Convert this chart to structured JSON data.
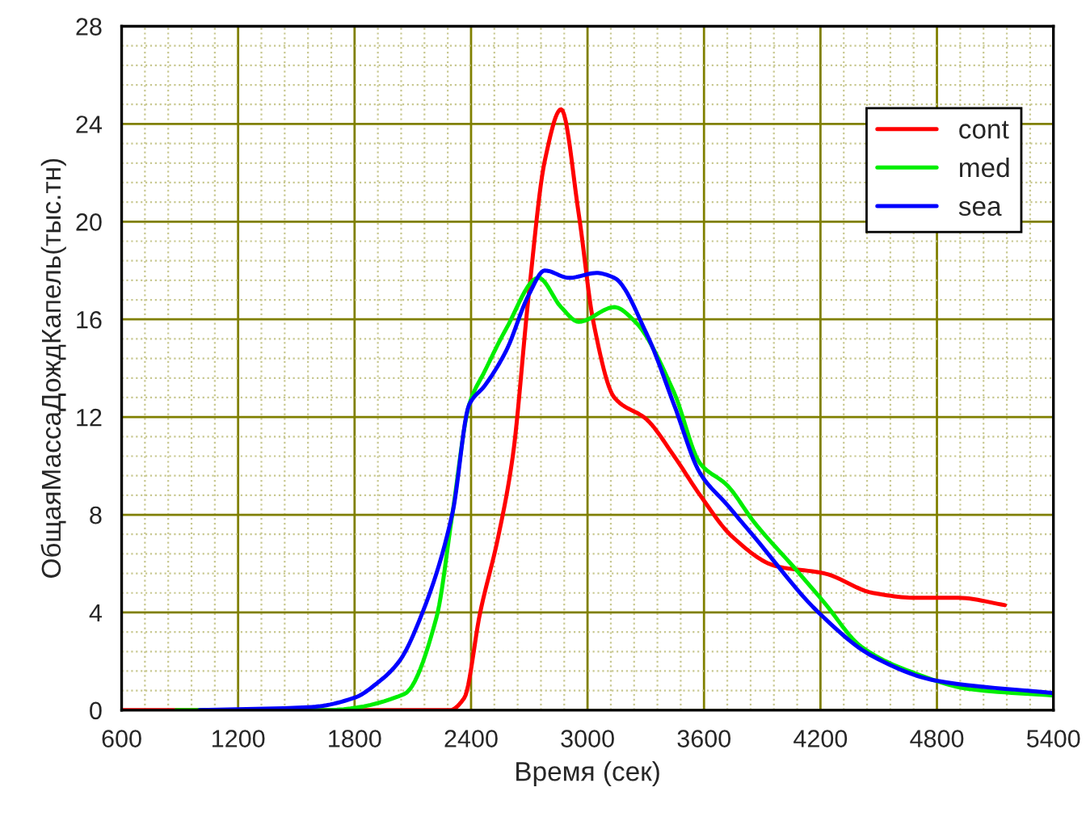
{
  "chart_data": {
    "type": "line",
    "xlabel": "Время (сек)",
    "ylabel": "ОбщаяМассаДождКапель(тыс.тн)",
    "xlim": [
      600,
      5400
    ],
    "xticks": [
      600,
      {
        "value": 720,
        "label": null
      },
      {
        "value": 840,
        "label": null
      },
      {
        "value": 960,
        "label": null
      },
      {
        "value": 1080,
        "label": null
      },
      1200,
      {
        "value": 1320,
        "label": null
      },
      {
        "value": 1440,
        "label": null
      },
      {
        "value": 1560,
        "label": null
      },
      {
        "value": 1680,
        "label": null
      },
      1800,
      {
        "value": 1920,
        "label": null
      },
      {
        "value": 2040,
        "label": null
      },
      {
        "value": 2160,
        "label": null
      },
      {
        "value": 2280,
        "label": null
      },
      2400,
      {
        "value": 2520,
        "label": null
      },
      {
        "value": 2640,
        "label": null
      },
      {
        "value": 2760,
        "label": null
      },
      {
        "value": 2880,
        "label": null
      },
      3000,
      {
        "value": 3120,
        "label": null
      },
      {
        "value": 3240,
        "label": null
      },
      {
        "value": 3360,
        "label": null
      },
      {
        "value": 3480,
        "label": null
      },
      3600,
      {
        "value": 3720,
        "label": null
      },
      {
        "value": 3840,
        "label": null
      },
      {
        "value": 3960,
        "label": null
      },
      {
        "value": 4080,
        "label": null
      },
      4200,
      {
        "value": 4320,
        "label": null
      },
      {
        "value": 4440,
        "label": null
      },
      {
        "value": 4560,
        "label": null
      },
      {
        "value": 4680,
        "label": null
      },
      4800,
      {
        "value": 4920,
        "label": null
      },
      {
        "value": 5040,
        "label": null
      },
      {
        "value": 5160,
        "label": null
      },
      {
        "value": 5280,
        "label": null
      },
      5400
    ],
    "ylim": [
      0,
      28
    ],
    "yticks": [
      0,
      {
        "value": 0.8,
        "label": null
      },
      {
        "value": 1.6,
        "label": null
      },
      {
        "value": 2.4,
        "label": null
      },
      {
        "value": 3.2,
        "label": null
      },
      4,
      {
        "value": 4.8,
        "label": null
      },
      {
        "value": 5.6,
        "label": null
      },
      {
        "value": 6.4,
        "label": null
      },
      {
        "value": 7.2,
        "label": null
      },
      8,
      {
        "value": 8.8,
        "label": null
      },
      {
        "value": 9.6,
        "label": null
      },
      {
        "value": 10.4,
        "label": null
      },
      {
        "value": 11.2,
        "label": null
      },
      12,
      {
        "value": 12.8,
        "label": null
      },
      {
        "value": 13.6,
        "label": null
      },
      {
        "value": 14.4,
        "label": null
      },
      {
        "value": 15.2,
        "label": null
      },
      16,
      {
        "value": 16.8,
        "label": null
      },
      {
        "value": 17.6,
        "label": null
      },
      {
        "value": 18.4,
        "label": null
      },
      {
        "value": 19.2,
        "label": null
      },
      20,
      {
        "value": 20.8,
        "label": null
      },
      {
        "value": 21.6,
        "label": null
      },
      {
        "value": 22.4,
        "label": null
      },
      {
        "value": 23.2,
        "label": null
      },
      24,
      {
        "value": 24.8,
        "label": null
      },
      {
        "value": 25.6,
        "label": null
      },
      {
        "value": 26.4,
        "label": null
      },
      {
        "value": 27.2,
        "label": null
      },
      28
    ],
    "grid": true,
    "legend": "top right",
    "line_style": "solid",
    "marker": "none",
    "series": [
      {
        "name": "cont",
        "color": "#ff0000",
        "x": [
          600,
          1500,
          2290,
          2365,
          2447,
          2540,
          2615,
          2697,
          2780,
          2864,
          2955,
          3030,
          3138,
          3305,
          3446,
          3580,
          3746,
          3970,
          4220,
          4470,
          4690,
          4910,
          5150
        ],
        "values": [
          0,
          0,
          0,
          0.5,
          4.0,
          7.1,
          10.4,
          17.0,
          22.5,
          24.6,
          20.3,
          15.9,
          12.8,
          11.9,
          10.4,
          8.8,
          7.1,
          5.9,
          5.6,
          4.8,
          4.6,
          4.6,
          4.3
        ]
      },
      {
        "name": "med",
        "color": "#00ee00",
        "x": [
          880,
          1640,
          2056,
          2222,
          2305,
          2390,
          2472,
          2580,
          2747,
          2864,
          2955,
          3138,
          3246,
          3446,
          3580,
          3720,
          3858,
          4080,
          4220,
          4410,
          4690,
          4970,
          5400
        ],
        "values": [
          0,
          0,
          0.66,
          3.8,
          8.1,
          12.5,
          13.9,
          15.6,
          17.7,
          16.5,
          15.9,
          16.5,
          15.9,
          13.0,
          10.1,
          9.2,
          7.7,
          5.7,
          4.4,
          2.6,
          1.5,
          0.86,
          0.6
        ]
      },
      {
        "name": "sea",
        "color": "#0000ff",
        "x": [
          1000,
          1580,
          1806,
          1915,
          2030,
          2140,
          2305,
          2390,
          2472,
          2580,
          2697,
          2780,
          2905,
          3046,
          3138,
          3305,
          3446,
          3580,
          3720,
          3858,
          4190,
          4470,
          4800,
          5400
        ],
        "values": [
          0,
          0.13,
          0.53,
          1.1,
          2.0,
          3.8,
          8.1,
          12.5,
          13.3,
          14.7,
          17.0,
          18.0,
          17.7,
          17.9,
          17.7,
          15.4,
          12.5,
          9.7,
          8.4,
          7.1,
          4.0,
          2.2,
          1.2,
          0.7
        ]
      }
    ]
  }
}
